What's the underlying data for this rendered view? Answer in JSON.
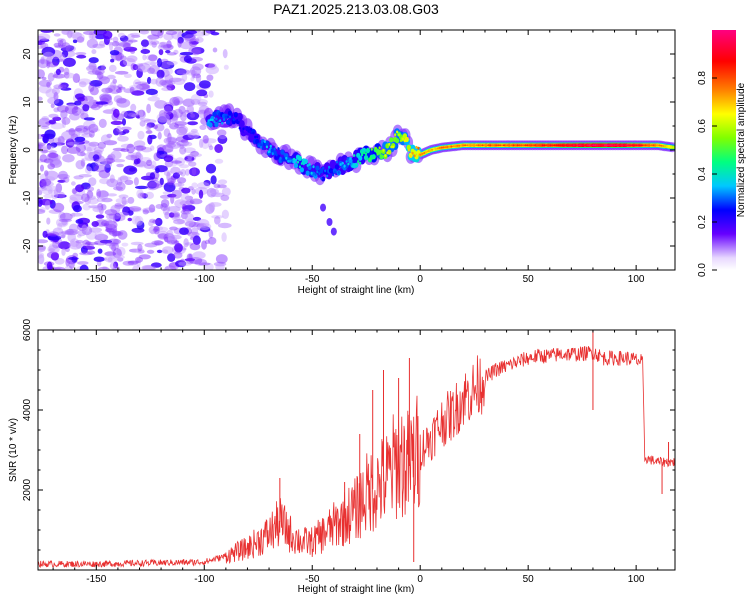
{
  "title": "PAZ1.2025.213.03.08.G03",
  "chart_data": [
    {
      "type": "heatmap",
      "xlabel": "Height of straight line (km)",
      "ylabel": "Frequency (Hz)",
      "xlim": [
        -177,
        118
      ],
      "ylim": [
        -25,
        25
      ],
      "xticks": [
        -150,
        -100,
        -50,
        0,
        50,
        100
      ],
      "yticks": [
        -20,
        -10,
        0,
        10,
        20
      ],
      "colorbar": {
        "label": "Normalized spectral amplitude",
        "range": [
          0,
          1
        ],
        "ticks": [
          0.0,
          0.2,
          0.4,
          0.6,
          0.8
        ],
        "colormap": [
          "#e8d8ff",
          "#6600ff",
          "#0000ff",
          "#00c8ff",
          "#00ff80",
          "#80ff00",
          "#ffff00",
          "#ff8000",
          "#ff0000",
          "#ff0080"
        ]
      },
      "signal_trace": {
        "x": [
          -98,
          -90,
          -85,
          -80,
          -75,
          -70,
          -65,
          -60,
          -55,
          -50,
          -45,
          -40,
          -35,
          -30,
          -25,
          -20,
          -15,
          -10,
          -7,
          -5,
          0,
          5,
          10,
          20,
          30,
          40,
          50,
          60,
          70,
          80,
          90,
          100,
          110,
          118
        ],
        "frequency": [
          6,
          7,
          6.5,
          4,
          2,
          0,
          -1,
          -2,
          -3,
          -4,
          -5,
          -4,
          -3,
          -2,
          -1,
          -0.5,
          0,
          3,
          2,
          0,
          -1,
          0,
          0.5,
          1,
          1,
          1,
          1,
          1,
          1,
          1,
          1,
          1,
          1,
          0.5
        ],
        "amplitude": [
          0.25,
          0.2,
          0.15,
          0.15,
          0.2,
          0.25,
          0.2,
          0.25,
          0.3,
          0.25,
          0.2,
          0.2,
          0.25,
          0.3,
          0.35,
          0.4,
          0.5,
          0.45,
          0.5,
          0.55,
          0.6,
          0.55,
          0.6,
          0.6,
          0.62,
          0.63,
          0.65,
          0.68,
          0.72,
          0.75,
          0.75,
          0.7,
          0.6,
          0.5
        ]
      },
      "noise_region": [
        -177,
        -95
      ]
    },
    {
      "type": "line",
      "xlabel": "Height of straight line (km)",
      "ylabel": "SNR (10 * v/v)",
      "xlim": [
        -177,
        118
      ],
      "ylim": [
        0,
        6000
      ],
      "xticks": [
        -150,
        -100,
        -50,
        0,
        50,
        100
      ],
      "yticks": [
        2000,
        4000,
        6000
      ],
      "line_color": "#e83030",
      "series": [
        {
          "x": [
            -177,
            -150,
            -120,
            -100,
            -90,
            -80,
            -70,
            -65,
            -60,
            -55,
            -50,
            -45,
            -40,
            -35,
            -30,
            -25,
            -20,
            -15,
            -10,
            -5,
            0,
            5,
            10,
            15,
            20,
            25,
            30,
            35,
            40,
            45,
            50,
            55,
            60,
            65,
            70,
            75,
            80,
            85,
            90,
            95,
            100,
            103,
            104,
            110,
            118
          ],
          "y": [
            150,
            150,
            180,
            200,
            350,
            550,
            900,
            1200,
            900,
            700,
            700,
            900,
            1100,
            1300,
            1500,
            1900,
            2100,
            2300,
            2800,
            2600,
            3000,
            3300,
            3700,
            3900,
            4300,
            4500,
            4800,
            5000,
            5100,
            5200,
            5300,
            5350,
            5350,
            5400,
            5400,
            5400,
            5450,
            5300,
            5300,
            5300,
            5250,
            5200,
            2800,
            2700,
            2700
          ]
        }
      ],
      "spikes": [
        {
          "x": -65,
          "y": 2300
        },
        {
          "x": -35,
          "y": 2200
        },
        {
          "x": -28,
          "y": 3400
        },
        {
          "x": -22,
          "y": 4500
        },
        {
          "x": -17,
          "y": 5000
        },
        {
          "x": -10,
          "y": 4800
        },
        {
          "x": -5,
          "y": 5300
        },
        {
          "x": -3,
          "y": 200
        },
        {
          "x": 80,
          "y": 6100
        },
        {
          "x": 80,
          "y": 4000
        },
        {
          "x": 112,
          "y": 1900
        },
        {
          "x": 115,
          "y": 3200
        }
      ]
    }
  ]
}
